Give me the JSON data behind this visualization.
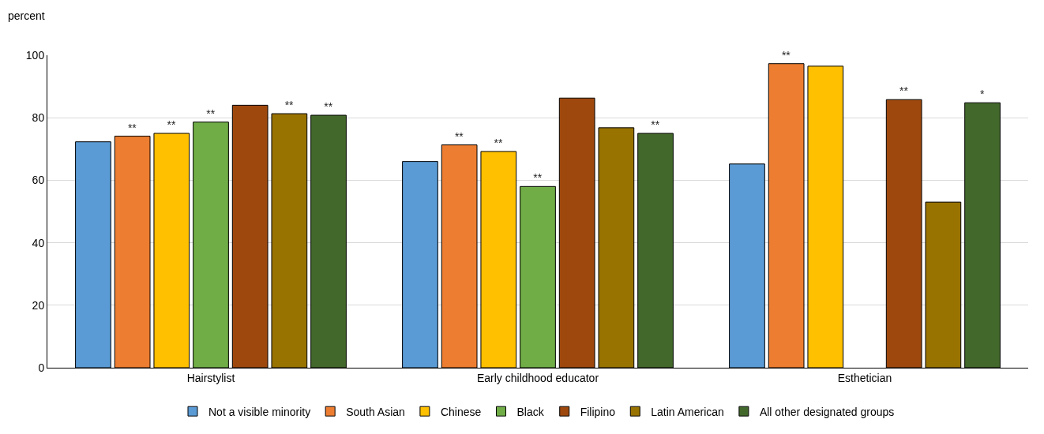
{
  "chart_data": {
    "type": "bar",
    "ylabel": "percent",
    "categories": [
      "Hairstylist",
      "Early childhood educator",
      "Esthetician"
    ],
    "series": [
      {
        "name": "Not a visible minority",
        "color": "#5b9bd5",
        "values": [
          72.3,
          66,
          65.2
        ],
        "value_labels": [
          null,
          null,
          null
        ]
      },
      {
        "name": "South Asian",
        "color": "#ed7d31",
        "values": [
          74.1,
          71.3,
          97.3
        ],
        "value_labels": [
          "**",
          "**",
          "**"
        ]
      },
      {
        "name": "Chinese",
        "color": "#ffc000",
        "values": [
          75,
          69.2,
          96.5
        ],
        "value_labels": [
          "**",
          "**",
          null
        ]
      },
      {
        "name": "Black",
        "color": "#70ad47",
        "values": [
          78.6,
          58,
          null
        ],
        "value_labels": [
          "**",
          "**",
          null
        ]
      },
      {
        "name": "Filipino",
        "color": "#9e480e",
        "values": [
          84,
          86.3,
          85.8
        ],
        "value_labels": [
          null,
          null,
          "**"
        ]
      },
      {
        "name": "Latin American",
        "color": "#997300",
        "values": [
          81.3,
          76.8,
          53
        ],
        "value_labels": [
          "**",
          null,
          null
        ]
      },
      {
        "name": "All other designated groups",
        "color": "#43682b",
        "values": [
          80.8,
          75,
          84.8
        ],
        "value_labels": [
          "**",
          "**",
          "*"
        ]
      }
    ],
    "ylim": [
      0,
      100
    ],
    "yticks": [
      0,
      20,
      40,
      60,
      80,
      100
    ],
    "grid": "y",
    "legend": "bottom"
  }
}
